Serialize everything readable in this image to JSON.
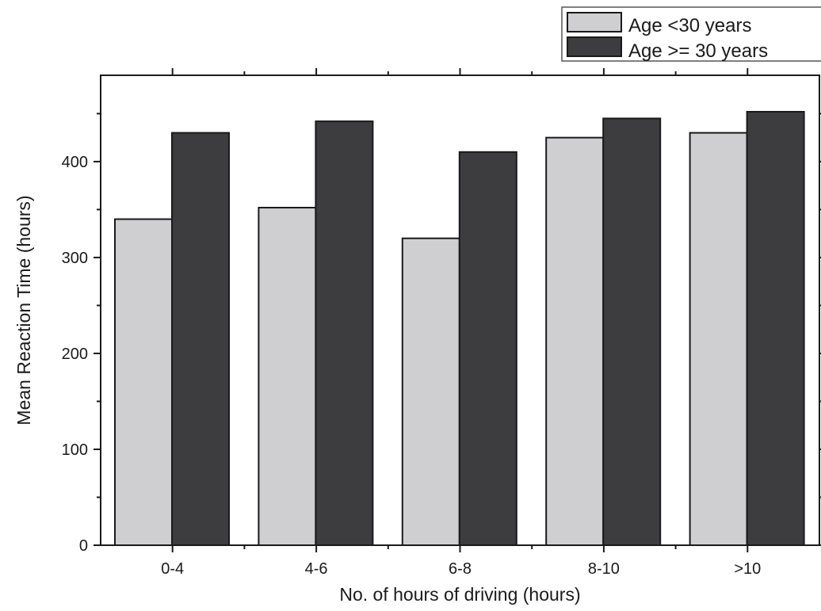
{
  "chart_data": {
    "type": "bar",
    "xlabel": "No. of hours of driving (hours)",
    "ylabel": "Mean Reaction Time (hours)",
    "categories": [
      "0-4",
      "4-6",
      "6-8",
      "8-10",
      ">10"
    ],
    "series": [
      {
        "name": "Age <30 years",
        "values": [
          340,
          352,
          320,
          425,
          430
        ],
        "color": "#cfcfd1"
      },
      {
        "name": "Age >= 30 years",
        "values": [
          430,
          442,
          410,
          445,
          452
        ],
        "color": "#3d3d3f"
      }
    ],
    "ylim": [
      0,
      490
    ],
    "yticks": [
      0,
      100,
      200,
      300,
      400
    ],
    "grid": false,
    "legend_position": "top-right"
  }
}
